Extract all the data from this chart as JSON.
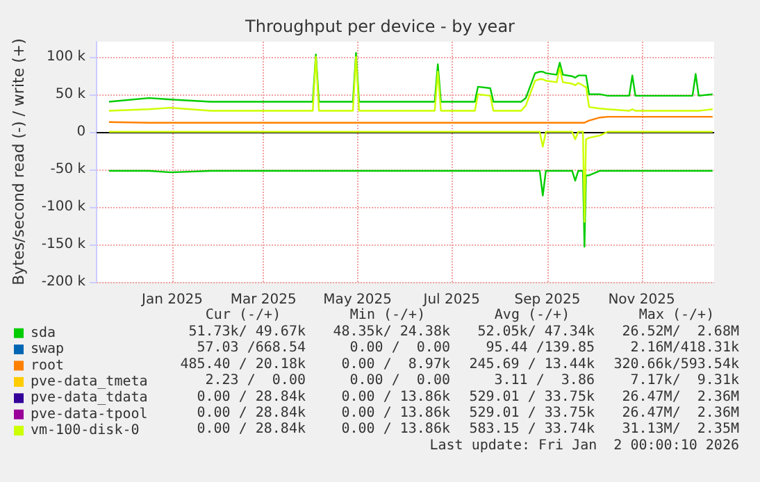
{
  "chart_data": {
    "type": "line",
    "title": "Throughput per device - by year",
    "ylabel": "Bytes/second read (-) / write (+)",
    "x": [
      "2024-12-06",
      "2025-01-01",
      "2025-01-15",
      "2025-02-10",
      "2025-03-15",
      "2025-04-17",
      "2025-04-19",
      "2025-04-21",
      "2025-05-13",
      "2025-05-15",
      "2025-05-17",
      "2025-06-15",
      "2025-07-05",
      "2025-07-07",
      "2025-07-09",
      "2025-07-31",
      "2025-08-02",
      "2025-08-10",
      "2025-08-12",
      "2025-08-30",
      "2025-09-02",
      "2025-09-08",
      "2025-09-11",
      "2025-09-13",
      "2025-09-15",
      "2025-09-22",
      "2025-09-24",
      "2025-09-26",
      "2025-10-02",
      "2025-10-04",
      "2025-10-06",
      "2025-10-09",
      "2025-10-10",
      "2025-10-11",
      "2025-10-13",
      "2025-10-20",
      "2025-10-25",
      "2025-11-08",
      "2025-11-10",
      "2025-11-12",
      "2025-12-19",
      "2025-12-21",
      "2025-12-23",
      "2026-01-01"
    ],
    "xlim": [
      "2024-11-28",
      "2026-01-02"
    ],
    "xticks": [
      {
        "value": "2025-01-16",
        "label": "Jan 2025"
      },
      {
        "value": "2025-03-16",
        "label": "Mar 2025"
      },
      {
        "value": "2025-05-16",
        "label": "May 2025"
      },
      {
        "value": "2025-07-16",
        "label": "Jul 2025"
      },
      {
        "value": "2025-09-16",
        "label": "Sep 2025"
      },
      {
        "value": "2025-11-16",
        "label": "Nov 2025"
      }
    ],
    "ylim": [
      -200000,
      120000
    ],
    "yticks": [
      {
        "value": -200000,
        "label": "-200 k"
      },
      {
        "value": -150000,
        "label": "-150 k"
      },
      {
        "value": -100000,
        "label": "-100 k"
      },
      {
        "value": -50000,
        "label": "-50 k"
      },
      {
        "value": 0,
        "label": "0"
      },
      {
        "value": 50000,
        "label": "50 k"
      },
      {
        "value": 100000,
        "label": "100 k"
      }
    ],
    "grid": true,
    "legend": "bottom left",
    "marker": "none",
    "line_style": "solid",
    "ref_lines": [
      {
        "axis": "y",
        "value": 0,
        "color": "#000000"
      }
    ],
    "series": [
      {
        "name": "sda",
        "color": "#00cc00",
        "values": [
          40000,
          45000,
          43000,
          40000,
          40000,
          40000,
          103000,
          40000,
          40000,
          105000,
          40000,
          40000,
          40000,
          90000,
          40000,
          40000,
          60000,
          58000,
          40000,
          40000,
          45000,
          78000,
          80000,
          80000,
          78000,
          76000,
          92000,
          76000,
          74000,
          72000,
          75000,
          75000,
          75000,
          75000,
          50000,
          50000,
          48000,
          48000,
          75000,
          48000,
          48000,
          77000,
          48000,
          50000
        ]
      },
      {
        "color": "#00cc00",
        "values": [
          -52000,
          -52000,
          -54000,
          -52000,
          -52000,
          -52000,
          -52000,
          -52000,
          -52000,
          -52000,
          -52000,
          -52000,
          -52000,
          -52000,
          -52000,
          -52000,
          -52000,
          -52000,
          -52000,
          -52000,
          -52000,
          -52000,
          -52000,
          -85000,
          -52000,
          -52000,
          -52000,
          -52000,
          -52000,
          -65000,
          -52000,
          -52000,
          -153000,
          -58000,
          -58000,
          -52000,
          -52000,
          -52000,
          -52000,
          -52000,
          -52000,
          -52000,
          -52000,
          -52000
        ]
      },
      {
        "name": "swap",
        "color": "#0066b3",
        "values": [
          null,
          null,
          null,
          null,
          null,
          null,
          null,
          null,
          null,
          null,
          null,
          null,
          null,
          null,
          null,
          null,
          null,
          null,
          null,
          null,
          null,
          null,
          null,
          null,
          null,
          null,
          null,
          null,
          null,
          null,
          null,
          null,
          null,
          null,
          null,
          null,
          null,
          null,
          null,
          null,
          null,
          null,
          null,
          null
        ]
      },
      {
        "name": "root",
        "color": "#ff8000",
        "values": [
          13000,
          12000,
          12000,
          12000,
          12000,
          12000,
          12000,
          12000,
          12000,
          12000,
          12000,
          12000,
          12000,
          12000,
          12000,
          12000,
          12000,
          12000,
          12000,
          12000,
          12000,
          12000,
          12000,
          12000,
          12000,
          12000,
          12000,
          12000,
          12000,
          12000,
          12000,
          12000,
          12000,
          13000,
          15000,
          19000,
          20000,
          20000,
          20000,
          20000,
          20000,
          20000,
          20000,
          20000
        ]
      },
      {
        "name": "pve-data_tmeta",
        "color": "#ffcc00",
        "values": [
          null,
          null,
          null,
          null,
          null,
          null,
          null,
          null,
          null,
          null,
          null,
          null,
          null,
          null,
          null,
          null,
          null,
          null,
          null,
          null,
          null,
          null,
          null,
          null,
          null,
          null,
          null,
          null,
          null,
          null,
          null,
          null,
          null,
          null,
          null,
          null,
          null,
          null,
          null,
          null,
          null,
          null,
          null,
          null
        ]
      },
      {
        "name": "pve-data_tdata",
        "color": "#330099",
        "values": [
          null,
          null,
          null,
          null,
          null,
          null,
          null,
          null,
          null,
          null,
          null,
          null,
          null,
          null,
          null,
          null,
          null,
          null,
          null,
          null,
          null,
          null,
          null,
          null,
          null,
          null,
          null,
          null,
          null,
          null,
          null,
          null,
          null,
          null,
          null,
          null,
          null,
          null,
          null,
          null,
          null,
          null,
          null,
          null
        ]
      },
      {
        "name": "pve-data-tpool",
        "color": "#990099",
        "values": [
          null,
          null,
          null,
          null,
          null,
          null,
          null,
          null,
          null,
          null,
          null,
          null,
          null,
          null,
          null,
          null,
          null,
          null,
          null,
          null,
          null,
          null,
          null,
          null,
          null,
          null,
          null,
          null,
          null,
          null,
          null,
          null,
          null,
          null,
          null,
          null,
          null,
          null,
          null,
          null,
          null,
          null,
          null,
          null
        ]
      },
      {
        "name": "vm-100-disk-0",
        "color": "#ccff00",
        "values": [
          28000,
          30000,
          32000,
          28000,
          28000,
          28000,
          100000,
          28000,
          28000,
          100000,
          28000,
          28000,
          28000,
          80000,
          28000,
          28000,
          50000,
          48000,
          28000,
          28000,
          35000,
          68000,
          70000,
          70000,
          68000,
          66000,
          85000,
          66000,
          64000,
          62000,
          65000,
          62000,
          60000,
          60000,
          33000,
          31000,
          30000,
          28000,
          30000,
          28000,
          28000,
          28000,
          28000,
          30000
        ]
      },
      {
        "color": "#ccff00",
        "values": [
          0,
          0,
          0,
          0,
          0,
          0,
          0,
          0,
          0,
          0,
          0,
          0,
          0,
          0,
          0,
          0,
          0,
          0,
          0,
          0,
          0,
          0,
          0,
          -20000,
          0,
          0,
          0,
          0,
          0,
          -10000,
          0,
          0,
          -120000,
          -10000,
          -8000,
          -5000,
          0,
          0,
          0,
          0,
          0,
          0,
          0,
          0
        ]
      }
    ],
    "annotations": [
      "Cur (-/+)",
      "Min (-/+)",
      "Avg (-/+)",
      "Max (-/+)",
      "51.73k/ 49.67k",
      "48.35k/ 24.38k",
      "52.05k/ 47.34k",
      "26.52M/  2.68M",
      "57.03 /668.54",
      "0.00 /  0.00",
      "95.44 /139.85",
      "2.16M/418.31k",
      "485.40 / 20.18k",
      "0.00 /  8.97k",
      "245.69 / 13.44k",
      "320.66k/593.54k",
      "2.23 /  0.00",
      "0.00 /  0.00",
      "3.11 /  3.86",
      "7.17k/  9.31k",
      "0.00 / 28.84k",
      "0.00 / 13.86k",
      "529.01 / 33.75k",
      "26.47M/  2.36M",
      "0.00 / 28.84k",
      "0.00 / 13.86k",
      "529.01 / 33.75k",
      "26.47M/  2.36M",
      "0.00 / 28.84k",
      "0.00 / 13.86k",
      "583.15 / 33.74k",
      "31.13M/  2.35M",
      "Last update: Fri Jan  2 00:00:10 2026"
    ]
  }
}
